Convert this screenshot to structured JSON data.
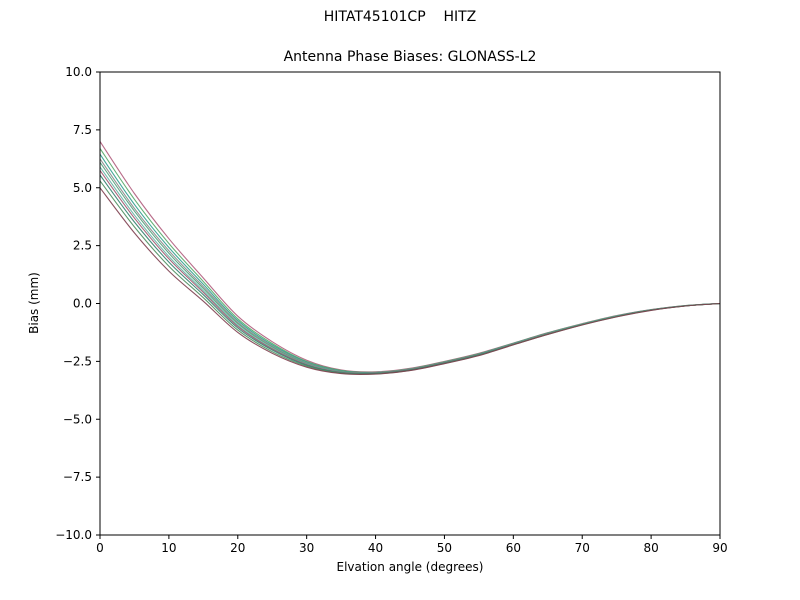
{
  "figure": {
    "title": "HITAT45101CP    HITZ",
    "subtitle": "Antenna Phase Biases: GLONASS-L2"
  },
  "chart_data": {
    "type": "line",
    "title": "Antenna Phase Biases: GLONASS-L2",
    "figure_title": "HITAT45101CP    HITZ",
    "xlabel": "Elvation angle (degrees)",
    "ylabel": "Bias (mm)",
    "xlim": [
      0,
      90
    ],
    "ylim": [
      -10,
      10
    ],
    "grid": false,
    "legend": "none",
    "x": [
      0,
      5,
      10,
      15,
      20,
      25,
      30,
      35,
      40,
      45,
      50,
      55,
      60,
      65,
      70,
      75,
      80,
      85,
      90
    ],
    "xticks": [
      {
        "v": 0,
        "label": "0"
      },
      {
        "v": 10,
        "label": "10"
      },
      {
        "v": 20,
        "label": "20"
      },
      {
        "v": 30,
        "label": "30"
      },
      {
        "v": 40,
        "label": "40"
      },
      {
        "v": 50,
        "label": "50"
      },
      {
        "v": 60,
        "label": "60"
      },
      {
        "v": 70,
        "label": "70"
      },
      {
        "v": 80,
        "label": "80"
      },
      {
        "v": 90,
        "label": "90"
      }
    ],
    "yticks": [
      {
        "v": 10,
        "label": "10.0"
      },
      {
        "v": 7.5,
        "label": "7.5"
      },
      {
        "v": 5,
        "label": "5.0"
      },
      {
        "v": 2.5,
        "label": "2.5"
      },
      {
        "v": 0,
        "label": "0.0"
      },
      {
        "v": -2.5,
        "label": "−2.5"
      },
      {
        "v": -5,
        "label": "−5.0"
      },
      {
        "v": -7.5,
        "label": "−7.5"
      },
      {
        "v": -10,
        "label": "−10.0"
      }
    ],
    "series": [
      {
        "name": "series-1",
        "color": "#b05c7c",
        "values": [
          7.0,
          4.75,
          2.8,
          1.1,
          -0.55,
          -1.65,
          -2.45,
          -2.87,
          -2.95,
          -2.8,
          -2.5,
          -2.15,
          -1.71,
          -1.26,
          -0.87,
          -0.52,
          -0.26,
          -0.09,
          0.0
        ]
      },
      {
        "name": "series-2",
        "color": "#55a868",
        "values": [
          6.7,
          4.5,
          2.59,
          0.95,
          -0.66,
          -1.73,
          -2.5,
          -2.89,
          -2.97,
          -2.82,
          -2.52,
          -2.17,
          -1.72,
          -1.27,
          -0.88,
          -0.53,
          -0.27,
          -0.09,
          0.0
        ]
      },
      {
        "name": "series-3",
        "color": "#2f9e8e",
        "values": [
          6.45,
          4.28,
          2.42,
          0.83,
          -0.74,
          -1.79,
          -2.53,
          -2.91,
          -2.98,
          -2.83,
          -2.53,
          -2.18,
          -1.73,
          -1.28,
          -0.89,
          -0.54,
          -0.27,
          -0.1,
          0.0
        ]
      },
      {
        "name": "series-4",
        "color": "#8a8a8a",
        "values": [
          6.25,
          4.11,
          2.28,
          0.73,
          -0.81,
          -1.84,
          -2.56,
          -2.93,
          -2.99,
          -2.84,
          -2.54,
          -2.19,
          -1.74,
          -1.29,
          -0.89,
          -0.54,
          -0.28,
          -0.1,
          0.0
        ]
      },
      {
        "name": "series-5",
        "color": "#4f9e79",
        "values": [
          6.1,
          3.99,
          2.17,
          0.65,
          -0.87,
          -1.88,
          -2.59,
          -2.94,
          -3.0,
          -2.85,
          -2.55,
          -2.2,
          -1.75,
          -1.3,
          -0.9,
          -0.55,
          -0.28,
          -0.1,
          0.0
        ]
      },
      {
        "name": "series-6",
        "color": "#64b5a6",
        "values": [
          5.9,
          3.82,
          2.03,
          0.55,
          -0.94,
          -1.93,
          -2.62,
          -2.96,
          -3.01,
          -2.86,
          -2.56,
          -2.21,
          -1.75,
          -1.3,
          -0.9,
          -0.55,
          -0.28,
          -0.1,
          0.0
        ]
      },
      {
        "name": "series-7",
        "color": "#a0566e",
        "values": [
          5.75,
          3.69,
          1.93,
          0.48,
          -0.99,
          -1.96,
          -2.64,
          -2.97,
          -3.01,
          -2.86,
          -2.56,
          -2.21,
          -1.76,
          -1.31,
          -0.91,
          -0.56,
          -0.28,
          -0.1,
          0.0
        ]
      },
      {
        "name": "series-8",
        "color": "#317f6f",
        "values": [
          5.55,
          3.52,
          1.79,
          0.38,
          -1.06,
          -2.01,
          -2.67,
          -2.99,
          -3.02,
          -2.87,
          -2.57,
          -2.22,
          -1.77,
          -1.32,
          -0.91,
          -0.56,
          -0.29,
          -0.1,
          0.0
        ]
      },
      {
        "name": "series-9",
        "color": "#4c8f5f",
        "values": [
          5.3,
          3.31,
          1.61,
          0.25,
          -1.15,
          -2.08,
          -2.71,
          -3.01,
          -3.04,
          -2.89,
          -2.59,
          -2.24,
          -1.78,
          -1.33,
          -0.92,
          -0.57,
          -0.29,
          -0.11,
          0.0
        ]
      },
      {
        "name": "series-10",
        "color": "#7e3f4f",
        "values": [
          5.0,
          3.05,
          1.4,
          0.1,
          -1.25,
          -2.15,
          -2.75,
          -3.03,
          -3.05,
          -2.9,
          -2.6,
          -2.25,
          -1.79,
          -1.34,
          -0.93,
          -0.58,
          -0.3,
          -0.11,
          0.0
        ]
      }
    ]
  }
}
